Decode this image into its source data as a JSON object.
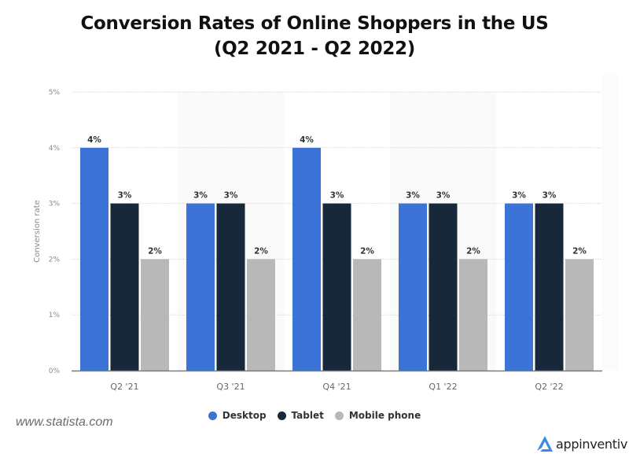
{
  "title_line1": "Conversion Rates of Online Shoppers in the US",
  "title_line2": "(Q2 2021 - Q2 2022)",
  "source": "www.statista.com",
  "brand": {
    "name": "appinventiv",
    "icon": "appinventiv-logo-icon",
    "color": "#3b8ae6"
  },
  "chart_data": {
    "type": "bar",
    "title": "Conversion Rates of Online Shoppers in the US (Q2 2021 - Q2 2022)",
    "xlabel": "",
    "ylabel": "Conversion rate",
    "ylim": [
      0,
      5
    ],
    "yticks": [
      "0%",
      "1%",
      "2%",
      "3%",
      "4%",
      "5%"
    ],
    "grid": true,
    "legend_position": "bottom-center",
    "categories": [
      "Q2 '21",
      "Q3 '21",
      "Q4 '21",
      "Q1 '22",
      "Q2 '22"
    ],
    "series": [
      {
        "name": "Desktop",
        "color": "#3b74d6",
        "values": [
          4,
          3,
          4,
          3,
          3
        ],
        "labels": [
          "4%",
          "3%",
          "4%",
          "3%",
          "3%"
        ]
      },
      {
        "name": "Tablet",
        "color": "#17283b",
        "values": [
          3,
          3,
          3,
          3,
          3
        ],
        "labels": [
          "3%",
          "3%",
          "3%",
          "3%",
          "3%"
        ]
      },
      {
        "name": "Mobile phone",
        "color": "#b8b8b8",
        "values": [
          2,
          2,
          2,
          2,
          2
        ],
        "labels": [
          "2%",
          "2%",
          "2%",
          "2%",
          "2%"
        ]
      }
    ]
  }
}
